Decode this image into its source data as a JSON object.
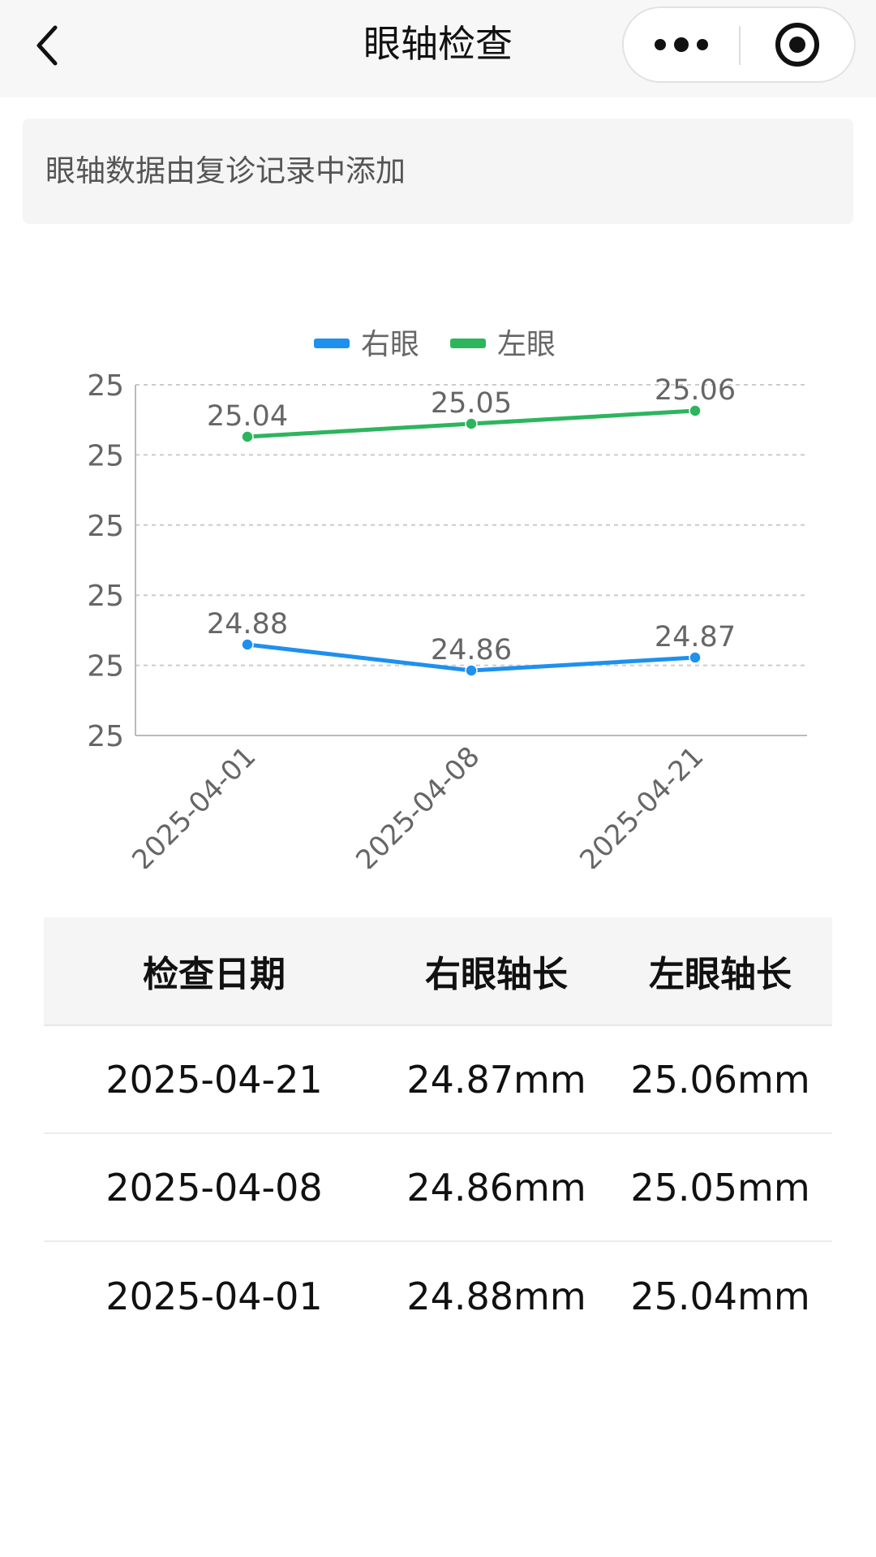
{
  "navbar": {
    "title": "眼轴检查",
    "back_icon": "chevron-left-icon",
    "more_icon": "more-dots-icon",
    "close_icon": "target-close-icon"
  },
  "notice": {
    "text": "眼轴数据由复诊记录中添加"
  },
  "chart_data": {
    "type": "line",
    "categories": [
      "2025-04-01",
      "2025-04-08",
      "2025-04-21"
    ],
    "series": [
      {
        "name": "右眼",
        "values": [
          24.88,
          24.86,
          24.87
        ],
        "color": "#1e90ee"
      },
      {
        "name": "左眼",
        "values": [
          25.04,
          25.05,
          25.06
        ],
        "color": "#2db55d"
      }
    ],
    "y_ticks": [
      "25",
      "25",
      "25",
      "25",
      "25",
      "25"
    ],
    "ylim": [
      24.81,
      25.08
    ],
    "grid": true,
    "legend_position": "top-center",
    "x_labels_rotated": true
  },
  "table": {
    "headers": [
      "检查日期",
      "右眼轴长",
      "左眼轴长"
    ],
    "rows": [
      [
        "2025-04-21",
        "24.87mm",
        "25.06mm"
      ],
      [
        "2025-04-08",
        "24.86mm",
        "25.05mm"
      ],
      [
        "2025-04-01",
        "24.88mm",
        "25.04mm"
      ]
    ]
  }
}
